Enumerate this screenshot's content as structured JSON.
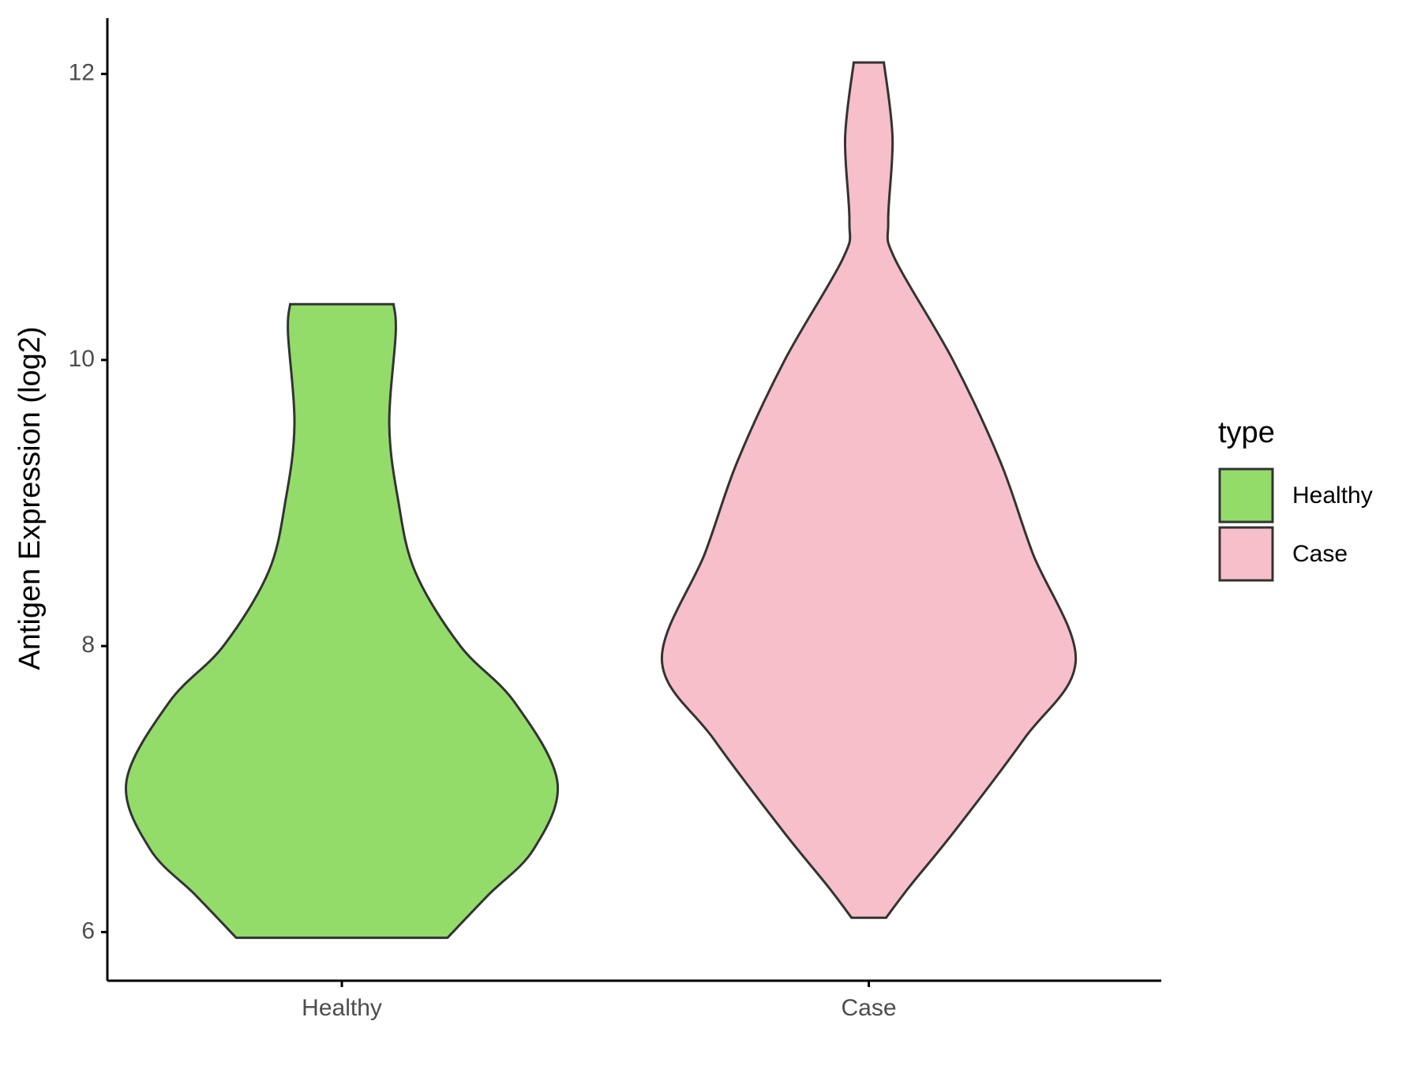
{
  "chart_data": {
    "type": "violin",
    "y_label": "Antigen Expression (log2)",
    "categories": [
      "Healthy",
      "Case"
    ],
    "legend_title": "type",
    "legend_position": "right",
    "ylim": [
      5.66,
      12.39
    ],
    "yticks": [
      6,
      8,
      10,
      12
    ],
    "series": [
      {
        "name": "Healthy",
        "color": "#93dc6a",
        "y": [
          10.39,
          10.19,
          9.55,
          9.03,
          8.52,
          8.0,
          7.61,
          7.05,
          6.58,
          6.26,
          5.96
        ],
        "density": [
          0.24,
          0.25,
          0.22,
          0.26,
          0.34,
          0.55,
          0.8,
          1.0,
          0.89,
          0.68,
          0.49
        ]
      },
      {
        "name": "Case",
        "color": "#f7bfca",
        "y": [
          12.08,
          11.55,
          10.97,
          10.71,
          10.0,
          9.29,
          8.65,
          7.9,
          7.35,
          6.71,
          6.32,
          6.1
        ],
        "density": [
          0.07,
          0.11,
          0.09,
          0.12,
          0.39,
          0.61,
          0.76,
          0.96,
          0.72,
          0.4,
          0.19,
          0.08
        ]
      }
    ]
  }
}
